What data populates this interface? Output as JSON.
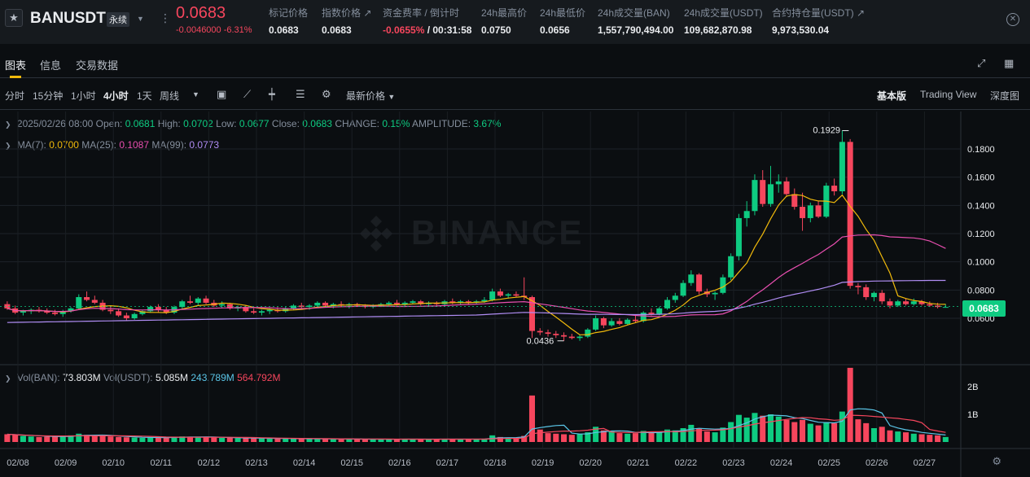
{
  "header": {
    "symbol": "BANUSDT",
    "badge": "永续",
    "last_price": "0.0683",
    "change": "-0.0046000 -6.31%",
    "stats": [
      {
        "label": "标记价格",
        "value": "0.0683"
      },
      {
        "label": "指数价格 ↗",
        "value": "0.0683"
      },
      {
        "label": "资金费率 / 倒计时",
        "value_red": "-0.0655%",
        "value_rest": " / 00:31:58"
      },
      {
        "label": "24h最高价",
        "value": "0.0750"
      },
      {
        "label": "24h最低价",
        "value": "0.0656"
      },
      {
        "label": "24h成交量(BAN)",
        "value": "1,557,790,494.00"
      },
      {
        "label": "24h成交量(USDT)",
        "value": "109,682,870.98"
      },
      {
        "label": "合约持仓量(USDT) ↗",
        "value": "9,973,530.04"
      }
    ]
  },
  "tabs": [
    "图表",
    "信息",
    "交易数据"
  ],
  "toolbar": {
    "intervals": [
      "分时",
      "15分钟",
      "1小时",
      "4小时",
      "1天",
      "周线"
    ],
    "active_interval": "4小时",
    "price_type": "最新价格",
    "views": [
      "基本版",
      "Trading View",
      "深度图"
    ]
  },
  "info": {
    "date": "2025/02/26 08:00",
    "open_label": "Open:",
    "open": "0.0681",
    "high_label": "High:",
    "high": "0.0702",
    "low_label": "Low:",
    "low": "0.0677",
    "close_label": "Close:",
    "close": "0.0683",
    "change_label": "CHANGE:",
    "change": "0.15%",
    "amp_label": "AMPLITUDE:",
    "amp": "3.67%",
    "ma7_label": "MA(7):",
    "ma7": "0.0700",
    "ma25_label": "MA(25):",
    "ma25": "0.1087",
    "ma99_label": "MA(99):",
    "ma99": "0.0773",
    "vol_ban_label": "Vol(BAN):",
    "vol_ban": "73.803M",
    "vol_usdt_label": "Vol(USDT):",
    "vol_usdt": "5.085M",
    "vol_ma1": "243.789M",
    "vol_ma2": "564.792M"
  },
  "watermark": "BINANCE",
  "price_tag": "0.0683",
  "colors": {
    "up": "#0ecb81",
    "down": "#f6465d",
    "ma7": "#f0b90b",
    "ma25": "#e84fb0",
    "ma99": "#b08df4",
    "vol_ma1": "#5bc6e8",
    "vol_ma2": "#f6465d"
  },
  "chart_data": {
    "type": "candlestick",
    "price_ticks": [
      "0.1800",
      "0.1600",
      "0.1400",
      "0.1200",
      "0.1000",
      "0.0800",
      "0.0600"
    ],
    "volume_ticks": [
      "2B",
      "1B"
    ],
    "date_labels": [
      "02/08",
      "02/09",
      "02/10",
      "02/11",
      "02/12",
      "02/13",
      "02/14",
      "02/15",
      "02/16",
      "02/17",
      "02/18",
      "02/19",
      "02/20",
      "02/21",
      "02/22",
      "02/23",
      "02/24",
      "02/25",
      "02/26",
      "02/27"
    ],
    "high_marker": "0.1929",
    "low_marker": "0.0436",
    "candles_per_day": 6,
    "ohlc": [
      [
        0.07,
        0.072,
        0.066,
        0.067
      ],
      [
        0.067,
        0.069,
        0.063,
        0.064
      ],
      [
        0.064,
        0.066,
        0.062,
        0.065
      ],
      [
        0.065,
        0.067,
        0.063,
        0.066
      ],
      [
        0.066,
        0.068,
        0.064,
        0.065
      ],
      [
        0.065,
        0.067,
        0.063,
        0.064
      ],
      [
        0.064,
        0.066,
        0.062,
        0.063
      ],
      [
        0.063,
        0.066,
        0.061,
        0.065
      ],
      [
        0.065,
        0.068,
        0.064,
        0.067
      ],
      [
        0.067,
        0.077,
        0.066,
        0.075
      ],
      [
        0.075,
        0.079,
        0.072,
        0.073
      ],
      [
        0.073,
        0.076,
        0.07,
        0.071
      ],
      [
        0.071,
        0.073,
        0.065,
        0.066
      ],
      [
        0.066,
        0.069,
        0.063,
        0.065
      ],
      [
        0.065,
        0.067,
        0.061,
        0.062
      ],
      [
        0.062,
        0.064,
        0.058,
        0.06
      ],
      [
        0.06,
        0.064,
        0.059,
        0.063
      ],
      [
        0.063,
        0.066,
        0.062,
        0.065
      ],
      [
        0.065,
        0.069,
        0.064,
        0.068
      ],
      [
        0.068,
        0.07,
        0.064,
        0.066
      ],
      [
        0.066,
        0.068,
        0.063,
        0.064
      ],
      [
        0.064,
        0.069,
        0.063,
        0.068
      ],
      [
        0.068,
        0.073,
        0.067,
        0.072
      ],
      [
        0.072,
        0.076,
        0.07,
        0.071
      ],
      [
        0.071,
        0.075,
        0.069,
        0.074
      ],
      [
        0.074,
        0.076,
        0.07,
        0.071
      ],
      [
        0.071,
        0.073,
        0.068,
        0.069
      ],
      [
        0.069,
        0.072,
        0.067,
        0.07
      ],
      [
        0.07,
        0.071,
        0.066,
        0.067
      ],
      [
        0.067,
        0.069,
        0.065,
        0.068
      ],
      [
        0.068,
        0.069,
        0.064,
        0.065
      ],
      [
        0.065,
        0.067,
        0.063,
        0.064
      ],
      [
        0.064,
        0.066,
        0.062,
        0.065
      ],
      [
        0.065,
        0.067,
        0.063,
        0.066
      ],
      [
        0.066,
        0.068,
        0.064,
        0.065
      ],
      [
        0.065,
        0.068,
        0.064,
        0.067
      ],
      [
        0.067,
        0.07,
        0.066,
        0.069
      ],
      [
        0.069,
        0.071,
        0.067,
        0.068
      ],
      [
        0.068,
        0.07,
        0.066,
        0.069
      ],
      [
        0.069,
        0.072,
        0.068,
        0.071
      ],
      [
        0.071,
        0.072,
        0.068,
        0.069
      ],
      [
        0.069,
        0.071,
        0.067,
        0.07
      ],
      [
        0.07,
        0.072,
        0.068,
        0.069
      ],
      [
        0.069,
        0.071,
        0.067,
        0.07
      ],
      [
        0.07,
        0.071,
        0.068,
        0.069
      ],
      [
        0.069,
        0.07,
        0.067,
        0.068
      ],
      [
        0.068,
        0.07,
        0.067,
        0.069
      ],
      [
        0.069,
        0.071,
        0.068,
        0.07
      ],
      [
        0.07,
        0.072,
        0.069,
        0.071
      ],
      [
        0.071,
        0.073,
        0.069,
        0.07
      ],
      [
        0.07,
        0.072,
        0.068,
        0.071
      ],
      [
        0.071,
        0.073,
        0.07,
        0.072
      ],
      [
        0.072,
        0.073,
        0.069,
        0.07
      ],
      [
        0.07,
        0.072,
        0.069,
        0.071
      ],
      [
        0.071,
        0.072,
        0.069,
        0.07
      ],
      [
        0.07,
        0.073,
        0.069,
        0.072
      ],
      [
        0.072,
        0.074,
        0.07,
        0.071
      ],
      [
        0.071,
        0.073,
        0.07,
        0.072
      ],
      [
        0.072,
        0.073,
        0.07,
        0.071
      ],
      [
        0.071,
        0.073,
        0.07,
        0.072
      ],
      [
        0.072,
        0.075,
        0.071,
        0.073
      ],
      [
        0.073,
        0.081,
        0.072,
        0.079
      ],
      [
        0.079,
        0.081,
        0.075,
        0.076
      ],
      [
        0.076,
        0.078,
        0.074,
        0.077
      ],
      [
        0.077,
        0.079,
        0.075,
        0.076
      ],
      [
        0.076,
        0.089,
        0.073,
        0.075
      ],
      [
        0.075,
        0.076,
        0.046,
        0.051
      ],
      [
        0.051,
        0.053,
        0.048,
        0.05
      ],
      [
        0.05,
        0.052,
        0.047,
        0.049
      ],
      [
        0.049,
        0.051,
        0.046,
        0.048
      ],
      [
        0.048,
        0.05,
        0.044,
        0.047
      ],
      [
        0.047,
        0.049,
        0.045,
        0.046
      ],
      [
        0.046,
        0.048,
        0.044,
        0.047
      ],
      [
        0.047,
        0.053,
        0.046,
        0.052
      ],
      [
        0.052,
        0.062,
        0.051,
        0.06
      ],
      [
        0.06,
        0.061,
        0.053,
        0.055
      ],
      [
        0.055,
        0.06,
        0.054,
        0.058
      ],
      [
        0.058,
        0.06,
        0.055,
        0.056
      ],
      [
        0.056,
        0.06,
        0.055,
        0.059
      ],
      [
        0.059,
        0.062,
        0.057,
        0.058
      ],
      [
        0.058,
        0.065,
        0.057,
        0.064
      ],
      [
        0.064,
        0.067,
        0.062,
        0.063
      ],
      [
        0.063,
        0.068,
        0.062,
        0.067
      ],
      [
        0.067,
        0.075,
        0.066,
        0.073
      ],
      [
        0.073,
        0.078,
        0.071,
        0.076
      ],
      [
        0.076,
        0.087,
        0.075,
        0.085
      ],
      [
        0.085,
        0.094,
        0.083,
        0.091
      ],
      [
        0.091,
        0.092,
        0.077,
        0.079
      ],
      [
        0.079,
        0.081,
        0.075,
        0.077
      ],
      [
        0.077,
        0.079,
        0.073,
        0.078
      ],
      [
        0.078,
        0.091,
        0.077,
        0.089
      ],
      [
        0.089,
        0.106,
        0.087,
        0.104
      ],
      [
        0.104,
        0.134,
        0.101,
        0.131
      ],
      [
        0.131,
        0.143,
        0.125,
        0.136
      ],
      [
        0.136,
        0.162,
        0.133,
        0.158
      ],
      [
        0.158,
        0.165,
        0.139,
        0.141
      ],
      [
        0.141,
        0.168,
        0.139,
        0.155
      ],
      [
        0.155,
        0.162,
        0.149,
        0.157
      ],
      [
        0.157,
        0.16,
        0.146,
        0.148
      ],
      [
        0.148,
        0.152,
        0.137,
        0.139
      ],
      [
        0.139,
        0.149,
        0.122,
        0.131
      ],
      [
        0.131,
        0.142,
        0.128,
        0.14
      ],
      [
        0.14,
        0.143,
        0.131,
        0.132
      ],
      [
        0.132,
        0.156,
        0.131,
        0.154
      ],
      [
        0.154,
        0.159,
        0.147,
        0.15
      ],
      [
        0.15,
        0.193,
        0.148,
        0.185
      ],
      [
        0.185,
        0.187,
        0.081,
        0.083
      ],
      [
        0.083,
        0.085,
        0.077,
        0.082
      ],
      [
        0.082,
        0.084,
        0.073,
        0.075
      ],
      [
        0.075,
        0.079,
        0.072,
        0.078
      ],
      [
        0.078,
        0.08,
        0.07,
        0.072
      ],
      [
        0.072,
        0.074,
        0.067,
        0.069
      ],
      [
        0.069,
        0.073,
        0.068,
        0.072
      ],
      [
        0.072,
        0.074,
        0.069,
        0.07
      ],
      [
        0.07,
        0.074,
        0.069,
        0.072
      ],
      [
        0.072,
        0.073,
        0.069,
        0.07
      ],
      [
        0.07,
        0.072,
        0.068,
        0.069
      ],
      [
        0.069,
        0.071,
        0.067,
        0.068
      ],
      [
        0.068,
        0.07,
        0.068,
        0.068
      ]
    ],
    "volumes": [
      0.28,
      0.25,
      0.22,
      0.2,
      0.18,
      0.19,
      0.2,
      0.21,
      0.24,
      0.3,
      0.26,
      0.22,
      0.23,
      0.2,
      0.18,
      0.17,
      0.16,
      0.15,
      0.16,
      0.17,
      0.16,
      0.18,
      0.2,
      0.19,
      0.18,
      0.17,
      0.16,
      0.15,
      0.15,
      0.14,
      0.14,
      0.13,
      0.13,
      0.13,
      0.12,
      0.12,
      0.12,
      0.12,
      0.11,
      0.12,
      0.11,
      0.11,
      0.1,
      0.11,
      0.1,
      0.1,
      0.1,
      0.1,
      0.1,
      0.1,
      0.11,
      0.1,
      0.1,
      0.1,
      0.1,
      0.11,
      0.1,
      0.1,
      0.1,
      0.1,
      0.12,
      0.24,
      0.18,
      0.14,
      0.12,
      0.22,
      1.68,
      0.45,
      0.32,
      0.3,
      0.28,
      0.26,
      0.28,
      0.35,
      0.55,
      0.42,
      0.38,
      0.32,
      0.3,
      0.32,
      0.4,
      0.35,
      0.34,
      0.45,
      0.42,
      0.5,
      0.62,
      0.48,
      0.38,
      0.35,
      0.52,
      0.72,
      0.98,
      0.88,
      1.05,
      0.95,
      1.0,
      0.92,
      0.8,
      0.72,
      0.8,
      0.66,
      0.6,
      0.72,
      0.68,
      1.1,
      2.68,
      0.82,
      0.68,
      0.5,
      0.55,
      0.42,
      0.38,
      0.35,
      0.3,
      0.28,
      0.26,
      0.24,
      0.18
    ]
  }
}
